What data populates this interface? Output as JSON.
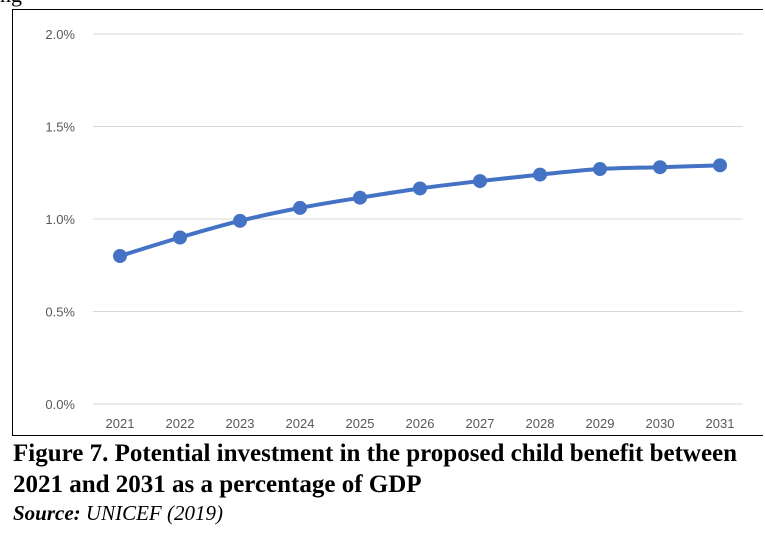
{
  "top_fragment": "ng",
  "chart_data": {
    "type": "line",
    "title": "",
    "xlabel": "",
    "ylabel": "",
    "x": [
      2021,
      2022,
      2023,
      2024,
      2025,
      2026,
      2027,
      2028,
      2029,
      2030,
      2031
    ],
    "series": [
      {
        "values": [
          0.8,
          0.9,
          0.99,
          1.06,
          1.115,
          1.165,
          1.205,
          1.24,
          1.27,
          1.28,
          1.29
        ]
      }
    ],
    "ylim": [
      0,
      2.0
    ],
    "yticks": [
      0,
      0.5,
      1.0,
      1.5,
      2.0
    ],
    "ytick_labels": [
      "0.0%",
      "0.5%",
      "1.0%",
      "1.5%",
      "2.0%"
    ],
    "xtick_labels": [
      "2021",
      "2022",
      "2023",
      "2024",
      "2025",
      "2026",
      "2027",
      "2028",
      "2029",
      "2030",
      "2031"
    ],
    "grid": "horizontal",
    "legend": "none",
    "colors": {
      "line": "#4472C4",
      "grid": "#d9d9d9",
      "tick_text": "#595959"
    }
  },
  "caption": {
    "title": "Figure 7. Potential investment in the proposed child benefit between 2021 and 2031 as a percentage of GDP",
    "source_label": "Source:",
    "source_text": "UNICEF (2019)"
  }
}
